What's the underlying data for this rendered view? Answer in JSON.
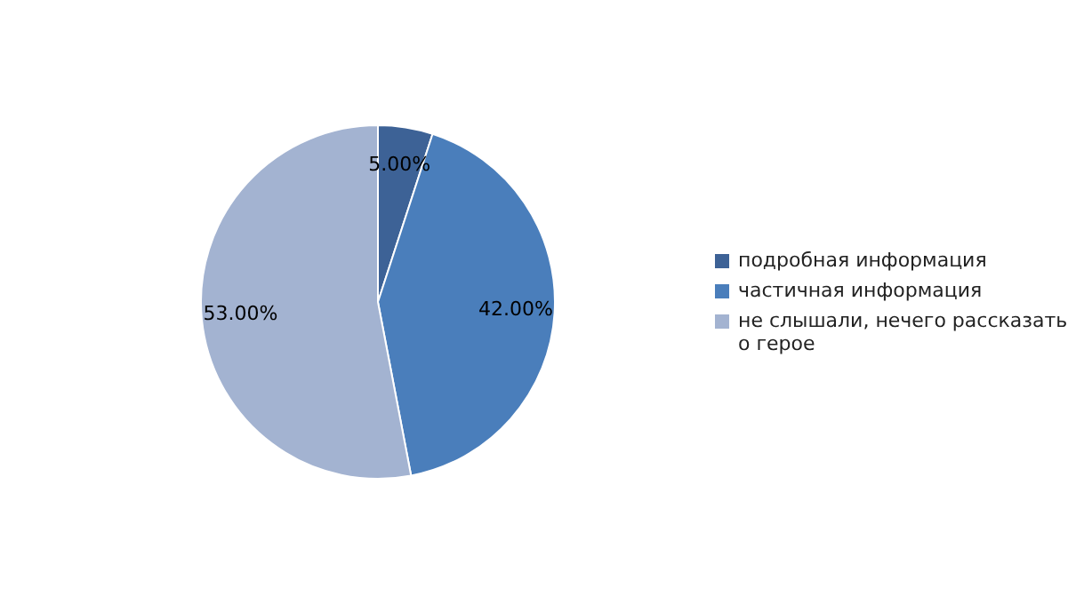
{
  "chart_data": {
    "type": "pie",
    "categories": [
      "подробная информация",
      "частичная информация",
      "не слышали, нечего рассказать о герое"
    ],
    "values": [
      5,
      42,
      53
    ],
    "colors": [
      "#3d6296",
      "#4a7ebb",
      "#a3b3d1"
    ],
    "value_labels": [
      "5.00%",
      "42.00%",
      "53.00%"
    ],
    "legend": "right"
  }
}
